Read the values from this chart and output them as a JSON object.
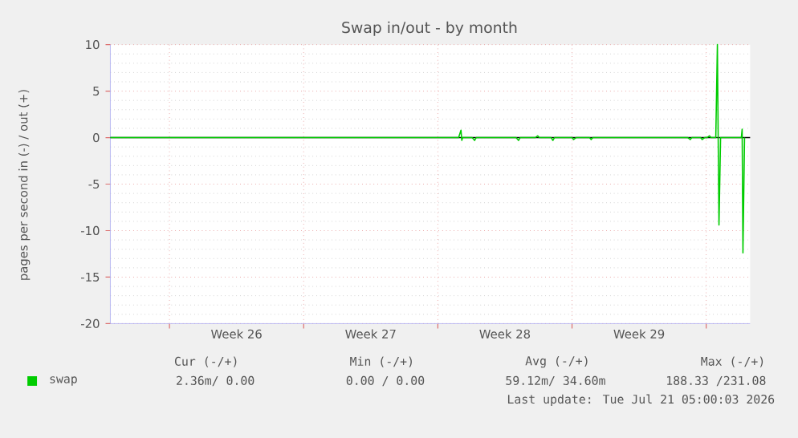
{
  "chart_data": {
    "type": "line",
    "title": "Swap in/out - by month",
    "ylabel": "pages per second in (-) / out (+)",
    "xlim": [
      "2026-06-17T22:00",
      "2026-07-21T07:00"
    ],
    "ylim": [
      -20,
      10
    ],
    "xticks": [
      {
        "value": "2026-06-21T00:00",
        "label": null
      },
      {
        "value": "2026-06-24T12:00",
        "label": "Week 26"
      },
      {
        "value": "2026-06-28T00:00",
        "label": null
      },
      {
        "value": "2026-07-01T12:00",
        "label": "Week 27"
      },
      {
        "value": "2026-07-05T00:00",
        "label": null
      },
      {
        "value": "2026-07-08T12:00",
        "label": "Week 28"
      },
      {
        "value": "2026-07-12T00:00",
        "label": null
      },
      {
        "value": "2026-07-15T12:00",
        "label": "Week 29"
      },
      {
        "value": "2026-07-19T00:00",
        "label": null
      }
    ],
    "yticks": [
      -20,
      -15,
      -10,
      -5,
      0,
      5,
      10
    ],
    "grid": true,
    "legend": "bottom left",
    "ref_lines": [
      {
        "axis": "y",
        "value": 0,
        "color": "#000000"
      }
    ],
    "series": [
      {
        "name": "swap",
        "color": "#00cc00",
        "x": [
          "2026-06-17T22:00",
          "2026-07-06T02:00",
          "2026-07-06T05:00",
          "2026-07-06T06:00",
          "2026-07-06T07:00",
          "2026-07-06T19:00",
          "2026-07-06T22:00",
          "2026-07-07T00:00",
          "2026-07-09T02:00",
          "2026-07-09T05:00",
          "2026-07-09T07:00",
          "2026-07-10T02:00",
          "2026-07-10T05:00",
          "2026-07-10T07:00",
          "2026-07-10T22:00",
          "2026-07-11T00:00",
          "2026-07-11T02:00",
          "2026-07-12T00:00",
          "2026-07-12T02:00",
          "2026-07-12T05:00",
          "2026-07-12T22:00",
          "2026-07-13T00:00",
          "2026-07-13T02:00",
          "2026-07-18T01:00",
          "2026-07-18T04:00",
          "2026-07-18T06:00",
          "2026-07-18T17:00",
          "2026-07-18T19:00",
          "2026-07-18T22:00",
          "2026-07-19T01:00",
          "2026-07-19T04:00",
          "2026-07-19T06:00",
          "2026-07-19T12:00",
          "2026-07-19T14:00",
          "2026-07-19T15:00",
          "2026-07-19T16:00",
          "2026-07-19T18:00",
          "2026-07-20T20:00",
          "2026-07-20T21:00",
          "2026-07-20T22:00",
          "2026-07-21T00:00"
        ],
        "values": [
          0,
          0,
          0.8,
          -0.3,
          0,
          0,
          -0.3,
          0,
          0,
          -0.3,
          0,
          0,
          0.2,
          0,
          0,
          -0.3,
          0,
          0,
          -0.2,
          0,
          0,
          -0.2,
          0,
          0,
          -0.2,
          0,
          0,
          -0.2,
          0,
          0,
          0.2,
          0,
          0,
          10,
          0,
          -9.4,
          0,
          0,
          0.9,
          -12.4,
          0
        ]
      }
    ],
    "annotations": [
      "Cur (-/+)",
      "Min (-/+)",
      "Avg (-/+)",
      "Max (-/+)",
      "2.36m/  0.00",
      "0.00 /  0.00",
      "59.12m/ 34.60m",
      "188.33 /231.08",
      "Last update: Tue Jul 21 05:00:03 2026"
    ]
  }
}
